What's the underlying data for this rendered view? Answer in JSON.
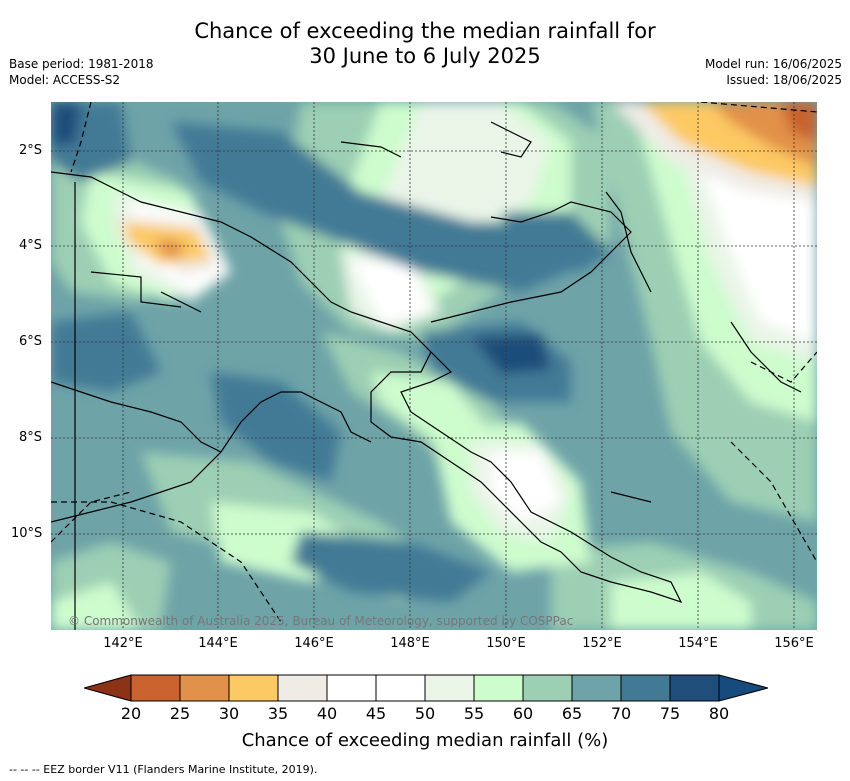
{
  "title": {
    "line1": "Chance of exceeding the median rainfall for",
    "line2": "30 June to 6 July 2025"
  },
  "meta": {
    "base_period": "Base period: 1981-2018",
    "model": "Model: ACCESS-S2",
    "model_run": "Model run: 16/06/2025",
    "issued": "Issued: 18/06/2025"
  },
  "map": {
    "lat_labels": [
      "2°S",
      "4°S",
      "6°S",
      "8°S",
      "10°S"
    ],
    "lon_labels": [
      "142°E",
      "144°E",
      "146°E",
      "148°E",
      "150°E",
      "152°E",
      "154°E",
      "156°E"
    ],
    "copyright": "© Commonwealth of Australia 2025, Bureau of Meteorology, supported by COSPPac"
  },
  "colorbar": {
    "ticks": [
      "20",
      "25",
      "30",
      "35",
      "40",
      "45",
      "50",
      "55",
      "60",
      "65",
      "70",
      "75",
      "80"
    ],
    "colors": [
      "#a9431e",
      "#c9622e",
      "#e2914a",
      "#fdc964",
      "#efece6",
      "#ffffff",
      "#ffffff",
      "#eaf5e8",
      "#cdfccd",
      "#9ccfb4",
      "#6ea3a8",
      "#427a96",
      "#1f4e7a"
    ],
    "low_extend_color": "#8b3217",
    "high_extend_color": "#174a7d",
    "title": "Chance of exceeding median rainfall (%)"
  },
  "footnote": "--  --  -- EEZ border V11 (Flanders Marine Institute, 2019)."
}
